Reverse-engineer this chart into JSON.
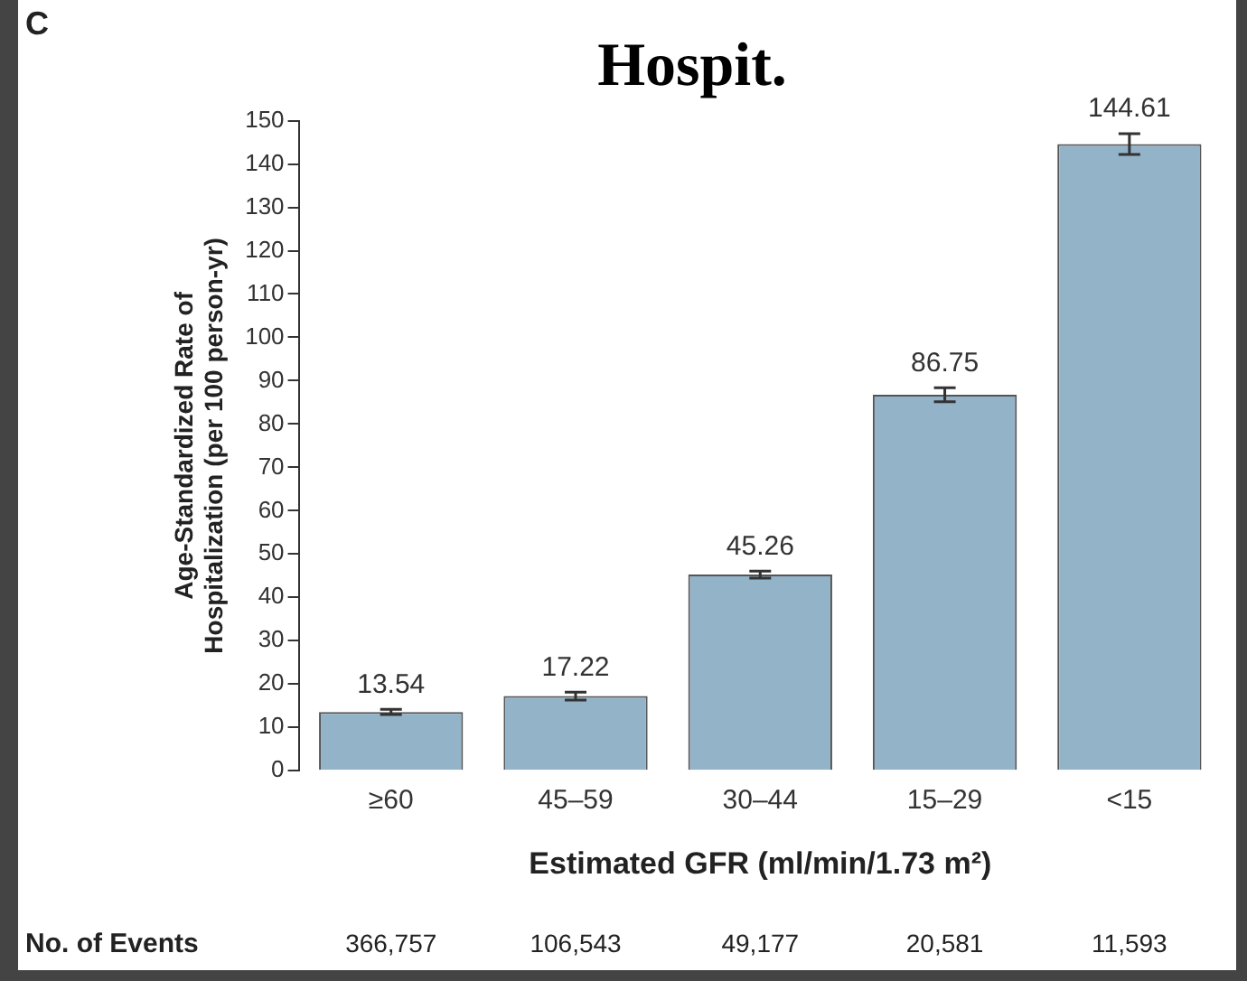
{
  "chart_data": {
    "type": "bar",
    "title": "Hospit.",
    "xlabel": "Estimated GFR (ml/min/1.73 m²)",
    "ylabel": "Age-Standardized Rate of Hospitalization (per 100 person-yr)",
    "categories": [
      "≥60",
      "45–59",
      "30–44",
      "15–29",
      "<15"
    ],
    "values": [
      13.54,
      17.22,
      45.26,
      86.75,
      144.61
    ],
    "errors": [
      0.6,
      0.9,
      0.8,
      1.6,
      2.4
    ],
    "color": "#93b3c8",
    "data_labels": true,
    "grid": false,
    "legend": false,
    "ylim": [
      0,
      150
    ],
    "yticks": [
      0,
      10,
      20,
      30,
      40,
      50,
      60,
      70,
      80,
      90,
      100,
      110,
      120,
      130,
      140,
      150
    ],
    "annotations": [
      "C",
      "No. of Events",
      "366,757",
      "106,543",
      "49,177",
      "20,581",
      "11,593"
    ]
  }
}
